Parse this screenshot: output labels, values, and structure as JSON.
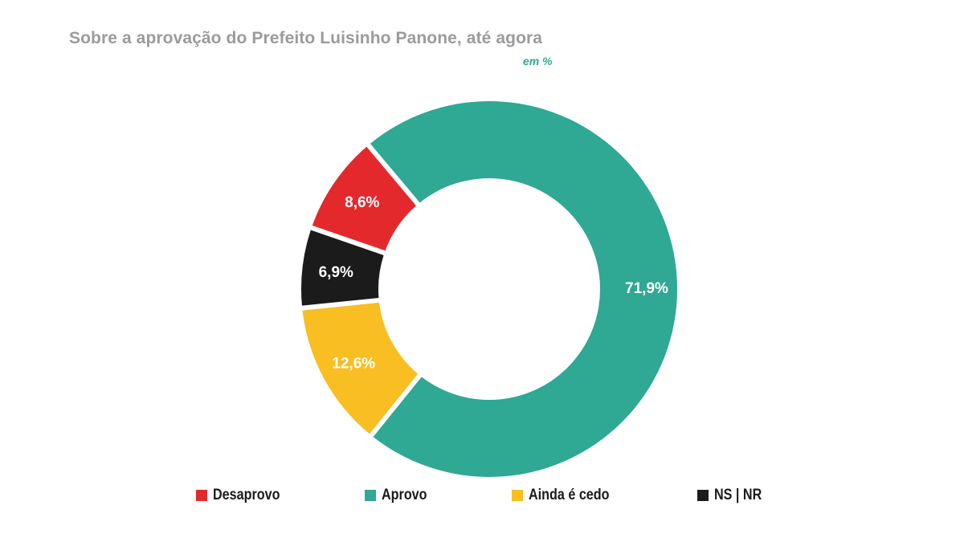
{
  "title": "Sobre a aprovação do Prefeito Luisinho Panone, até agora",
  "subtitle": "em %",
  "chart_data": {
    "type": "pie",
    "variant": "donut",
    "title": "Sobre a aprovação do Prefeito Luisinho Panone, até agora",
    "unit": "em %",
    "slices": [
      {
        "name": "Aprovo",
        "value": 71.9,
        "label": "71,9%",
        "color": "#2fa894"
      },
      {
        "name": "Ainda é cedo",
        "value": 12.6,
        "label": "12,6%",
        "color": "#f8be22"
      },
      {
        "name": "NS | NR",
        "value": 6.9,
        "label": "6,9%",
        "color": "#1b1b1b"
      },
      {
        "name": "Desaprovo",
        "value": 8.6,
        "label": "8,6%",
        "color": "#e3292c"
      }
    ],
    "legend": [
      "Desaprovo",
      "Aprovo",
      "Ainda é cedo",
      "NS | NR"
    ],
    "legend_position": "bottom"
  },
  "legend": [
    {
      "label": "Desaprovo",
      "color": "#e3292c"
    },
    {
      "label": "Aprovo",
      "color": "#2fa894"
    },
    {
      "label": "Ainda é cedo",
      "color": "#f8be22"
    },
    {
      "label": "NS | NR",
      "color": "#1b1b1b"
    }
  ]
}
